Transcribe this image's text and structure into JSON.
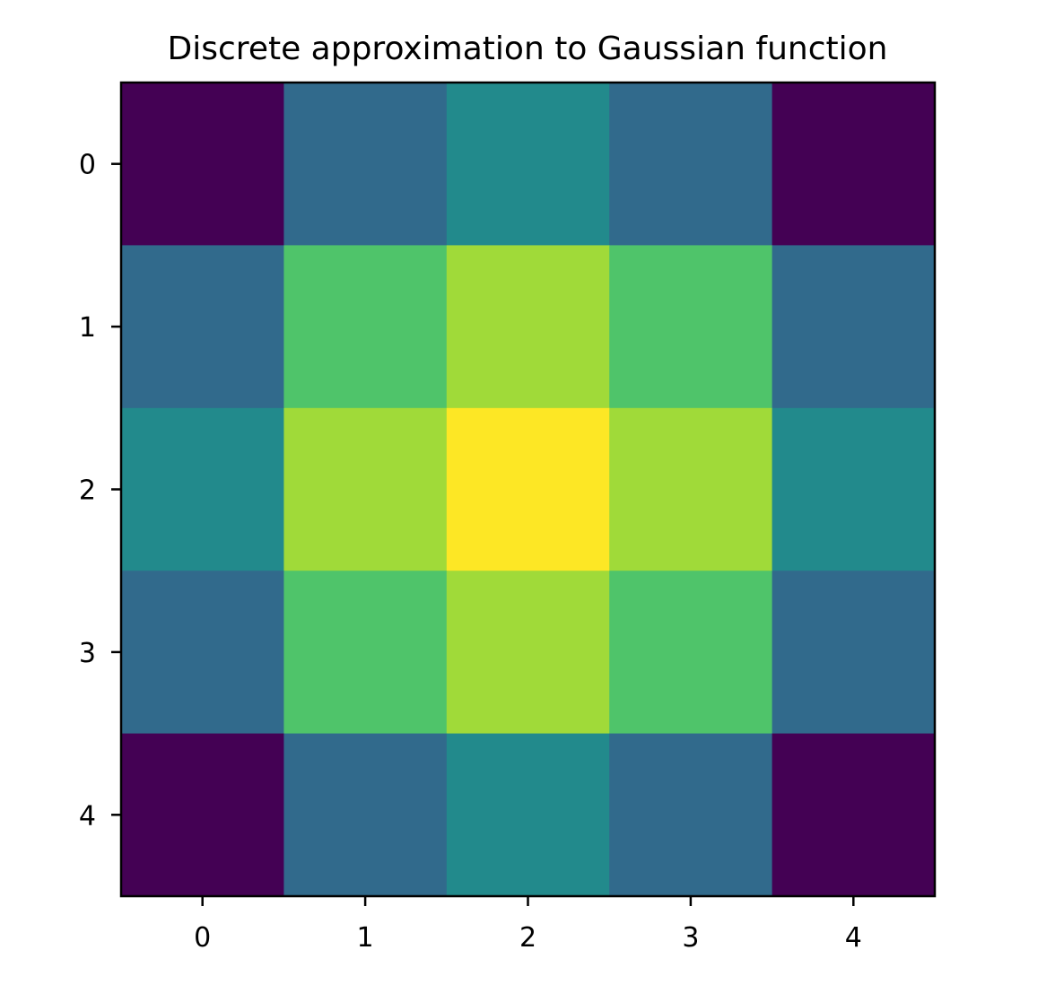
{
  "chart_data": {
    "type": "heatmap",
    "title": "Discrete approximation to Gaussian function",
    "xlabel": "",
    "ylabel": "",
    "x_ticks": [
      "0",
      "1",
      "2",
      "3",
      "4"
    ],
    "y_ticks": [
      "0",
      "1",
      "2",
      "3",
      "4"
    ],
    "y_axis_direction": "top-to-bottom",
    "colormap": "viridis",
    "value_range": [
      0.0,
      1.0
    ],
    "values": [
      [
        0.0,
        0.3,
        0.5,
        0.3,
        0.0
      ],
      [
        0.3,
        0.72,
        0.84,
        0.72,
        0.3
      ],
      [
        0.5,
        0.84,
        1.0,
        0.84,
        0.5
      ],
      [
        0.3,
        0.72,
        0.84,
        0.72,
        0.3
      ],
      [
        0.0,
        0.3,
        0.5,
        0.3,
        0.0
      ]
    ],
    "cell_colors": {
      "0.00": "#440154",
      "0.30": "#316a8c",
      "0.50": "#228a8c",
      "0.72": "#4fc46a",
      "0.84": "#a0da39",
      "1.00": "#fde725"
    },
    "grid": false,
    "legend": "none"
  }
}
